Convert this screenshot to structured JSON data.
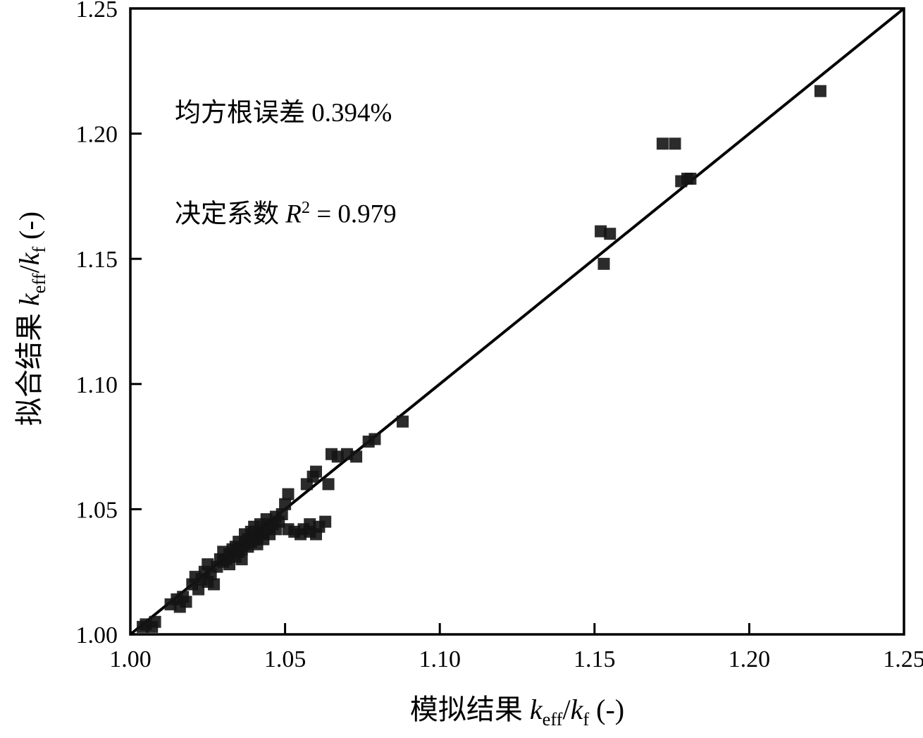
{
  "chart_data": {
    "type": "scatter",
    "title": "",
    "xlim": [
      1.0,
      1.25
    ],
    "ylim": [
      1.0,
      1.25
    ],
    "xticks": [
      1.0,
      1.05,
      1.1,
      1.15,
      1.2,
      1.25
    ],
    "yticks": [
      1.0,
      1.05,
      1.1,
      1.15,
      1.2,
      1.25
    ],
    "xtick_labels": [
      "1.00",
      "1.05",
      "1.10",
      "1.15",
      "1.20",
      "1.25"
    ],
    "ytick_labels": [
      "1.00",
      "1.05",
      "1.10",
      "1.15",
      "1.20",
      "1.25"
    ],
    "grid": "off",
    "legend": "none",
    "xlabel": {
      "prefix": "模拟结果 ",
      "var1": "k",
      "sub1": "eff",
      "sep": "/",
      "var2": "k",
      "sub2": "f",
      "unit": " (-)"
    },
    "ylabel": {
      "prefix": "拟合结果 ",
      "var1": "k",
      "sub1": "eff",
      "sep": "/",
      "var2": "k",
      "sub2": "f",
      "unit": " (-)"
    },
    "annotations": {
      "rmse_text": "均方根误差 0.394%",
      "r2_prefix": "决定系数 ",
      "r2_var": "R",
      "r2_sup": "2",
      "r2_suffix": " = 0.979"
    },
    "line": {
      "x1": 1.0,
      "y1": 1.0,
      "x2": 1.25,
      "y2": 1.25
    },
    "colors": {
      "axis": "#000000",
      "marker": "#141414",
      "line": "#000000"
    },
    "points": [
      [
        1.004,
        1.003
      ],
      [
        1.005,
        1.004
      ],
      [
        1.007,
        1.003
      ],
      [
        1.008,
        1.005
      ],
      [
        1.013,
        1.012
      ],
      [
        1.015,
        1.014
      ],
      [
        1.016,
        1.011
      ],
      [
        1.017,
        1.015
      ],
      [
        1.018,
        1.013
      ],
      [
        1.02,
        1.02
      ],
      [
        1.021,
        1.023
      ],
      [
        1.022,
        1.018
      ],
      [
        1.023,
        1.022
      ],
      [
        1.024,
        1.025
      ],
      [
        1.025,
        1.021
      ],
      [
        1.025,
        1.028
      ],
      [
        1.026,
        1.024
      ],
      [
        1.027,
        1.02
      ],
      [
        1.028,
        1.027
      ],
      [
        1.029,
        1.03
      ],
      [
        1.03,
        1.029
      ],
      [
        1.03,
        1.033
      ],
      [
        1.031,
        1.03
      ],
      [
        1.032,
        1.032
      ],
      [
        1.032,
        1.028
      ],
      [
        1.033,
        1.034
      ],
      [
        1.034,
        1.031
      ],
      [
        1.034,
        1.035
      ],
      [
        1.035,
        1.033
      ],
      [
        1.035,
        1.037
      ],
      [
        1.036,
        1.034
      ],
      [
        1.036,
        1.03
      ],
      [
        1.037,
        1.036
      ],
      [
        1.037,
        1.04
      ],
      [
        1.038,
        1.035
      ],
      [
        1.038,
        1.038
      ],
      [
        1.039,
        1.037
      ],
      [
        1.039,
        1.041
      ],
      [
        1.04,
        1.038
      ],
      [
        1.04,
        1.043
      ],
      [
        1.041,
        1.039
      ],
      [
        1.041,
        1.036
      ],
      [
        1.042,
        1.041
      ],
      [
        1.042,
        1.044
      ],
      [
        1.043,
        1.04
      ],
      [
        1.043,
        1.038
      ],
      [
        1.044,
        1.042
      ],
      [
        1.044,
        1.046
      ],
      [
        1.045,
        1.043
      ],
      [
        1.045,
        1.04
      ],
      [
        1.046,
        1.044
      ],
      [
        1.047,
        1.042
      ],
      [
        1.047,
        1.047
      ],
      [
        1.048,
        1.045
      ],
      [
        1.049,
        1.048
      ],
      [
        1.05,
        1.052
      ],
      [
        1.051,
        1.056
      ],
      [
        1.051,
        1.042
      ],
      [
        1.053,
        1.041
      ],
      [
        1.055,
        1.04
      ],
      [
        1.056,
        1.042
      ],
      [
        1.058,
        1.041
      ],
      [
        1.058,
        1.044
      ],
      [
        1.06,
        1.04
      ],
      [
        1.061,
        1.043
      ],
      [
        1.063,
        1.045
      ],
      [
        1.057,
        1.06
      ],
      [
        1.059,
        1.063
      ],
      [
        1.06,
        1.065
      ],
      [
        1.064,
        1.06
      ],
      [
        1.065,
        1.072
      ],
      [
        1.067,
        1.071
      ],
      [
        1.07,
        1.072
      ],
      [
        1.073,
        1.071
      ],
      [
        1.077,
        1.077
      ],
      [
        1.079,
        1.078
      ],
      [
        1.088,
        1.085
      ],
      [
        1.152,
        1.161
      ],
      [
        1.155,
        1.16
      ],
      [
        1.153,
        1.148
      ],
      [
        1.172,
        1.196
      ],
      [
        1.176,
        1.196
      ],
      [
        1.178,
        1.181
      ],
      [
        1.18,
        1.182
      ],
      [
        1.181,
        1.182
      ],
      [
        1.223,
        1.217
      ]
    ]
  }
}
